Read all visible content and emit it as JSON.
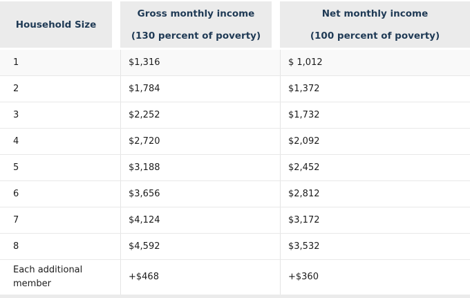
{
  "colors": {
    "header_bg": "#ebebeb",
    "header_text": "#1f3a55",
    "body_text": "#1b1b1b",
    "row_border": "#e8e8e8",
    "col_divider": "#e4e4e4",
    "row_highlight": "#f9f9f9",
    "page_bg": "#ffffff"
  },
  "table": {
    "columns": [
      {
        "label": "Household Size",
        "sublabel": ""
      },
      {
        "label": "Gross monthly income",
        "sublabel": "(130 percent of poverty)"
      },
      {
        "label": "Net monthly income",
        "sublabel": "(100 percent of poverty)"
      }
    ],
    "rows": [
      {
        "household_size": "1",
        "gross": "$1,316",
        "net": "$ 1,012",
        "highlight": true
      },
      {
        "household_size": "2",
        "gross": "$1,784",
        "net": "$1,372"
      },
      {
        "household_size": "3",
        "gross": "$2,252",
        "net": "$1,732"
      },
      {
        "household_size": "4",
        "gross": "$2,720",
        "net": "$2,092"
      },
      {
        "household_size": "5",
        "gross": "$3,188",
        "net": "$2,452"
      },
      {
        "household_size": "6",
        "gross": "$3,656",
        "net": "$2,812"
      },
      {
        "household_size": "7",
        "gross": "$4,124",
        "net": "$3,172"
      },
      {
        "household_size": "8",
        "gross": "$4,592",
        "net": "$3,532"
      },
      {
        "household_size": "Each additional member",
        "gross": "+$468",
        "net": "+$360",
        "tall": true
      }
    ]
  },
  "chart_data": {
    "type": "table",
    "title": "",
    "columns": [
      "Household Size",
      "Gross monthly income (130 percent of poverty)",
      "Net monthly income (100 percent of poverty)"
    ],
    "rows": [
      [
        "1",
        "$1,316",
        "$ 1,012"
      ],
      [
        "2",
        "$1,784",
        "$1,372"
      ],
      [
        "3",
        "$2,252",
        "$1,732"
      ],
      [
        "4",
        "$2,720",
        "$2,092"
      ],
      [
        "5",
        "$3,188",
        "$2,452"
      ],
      [
        "6",
        "$3,656",
        "$2,812"
      ],
      [
        "7",
        "$4,124",
        "$3,172"
      ],
      [
        "8",
        "$4,592",
        "$3,532"
      ],
      [
        "Each additional member",
        "+$468",
        "+$360"
      ]
    ]
  }
}
